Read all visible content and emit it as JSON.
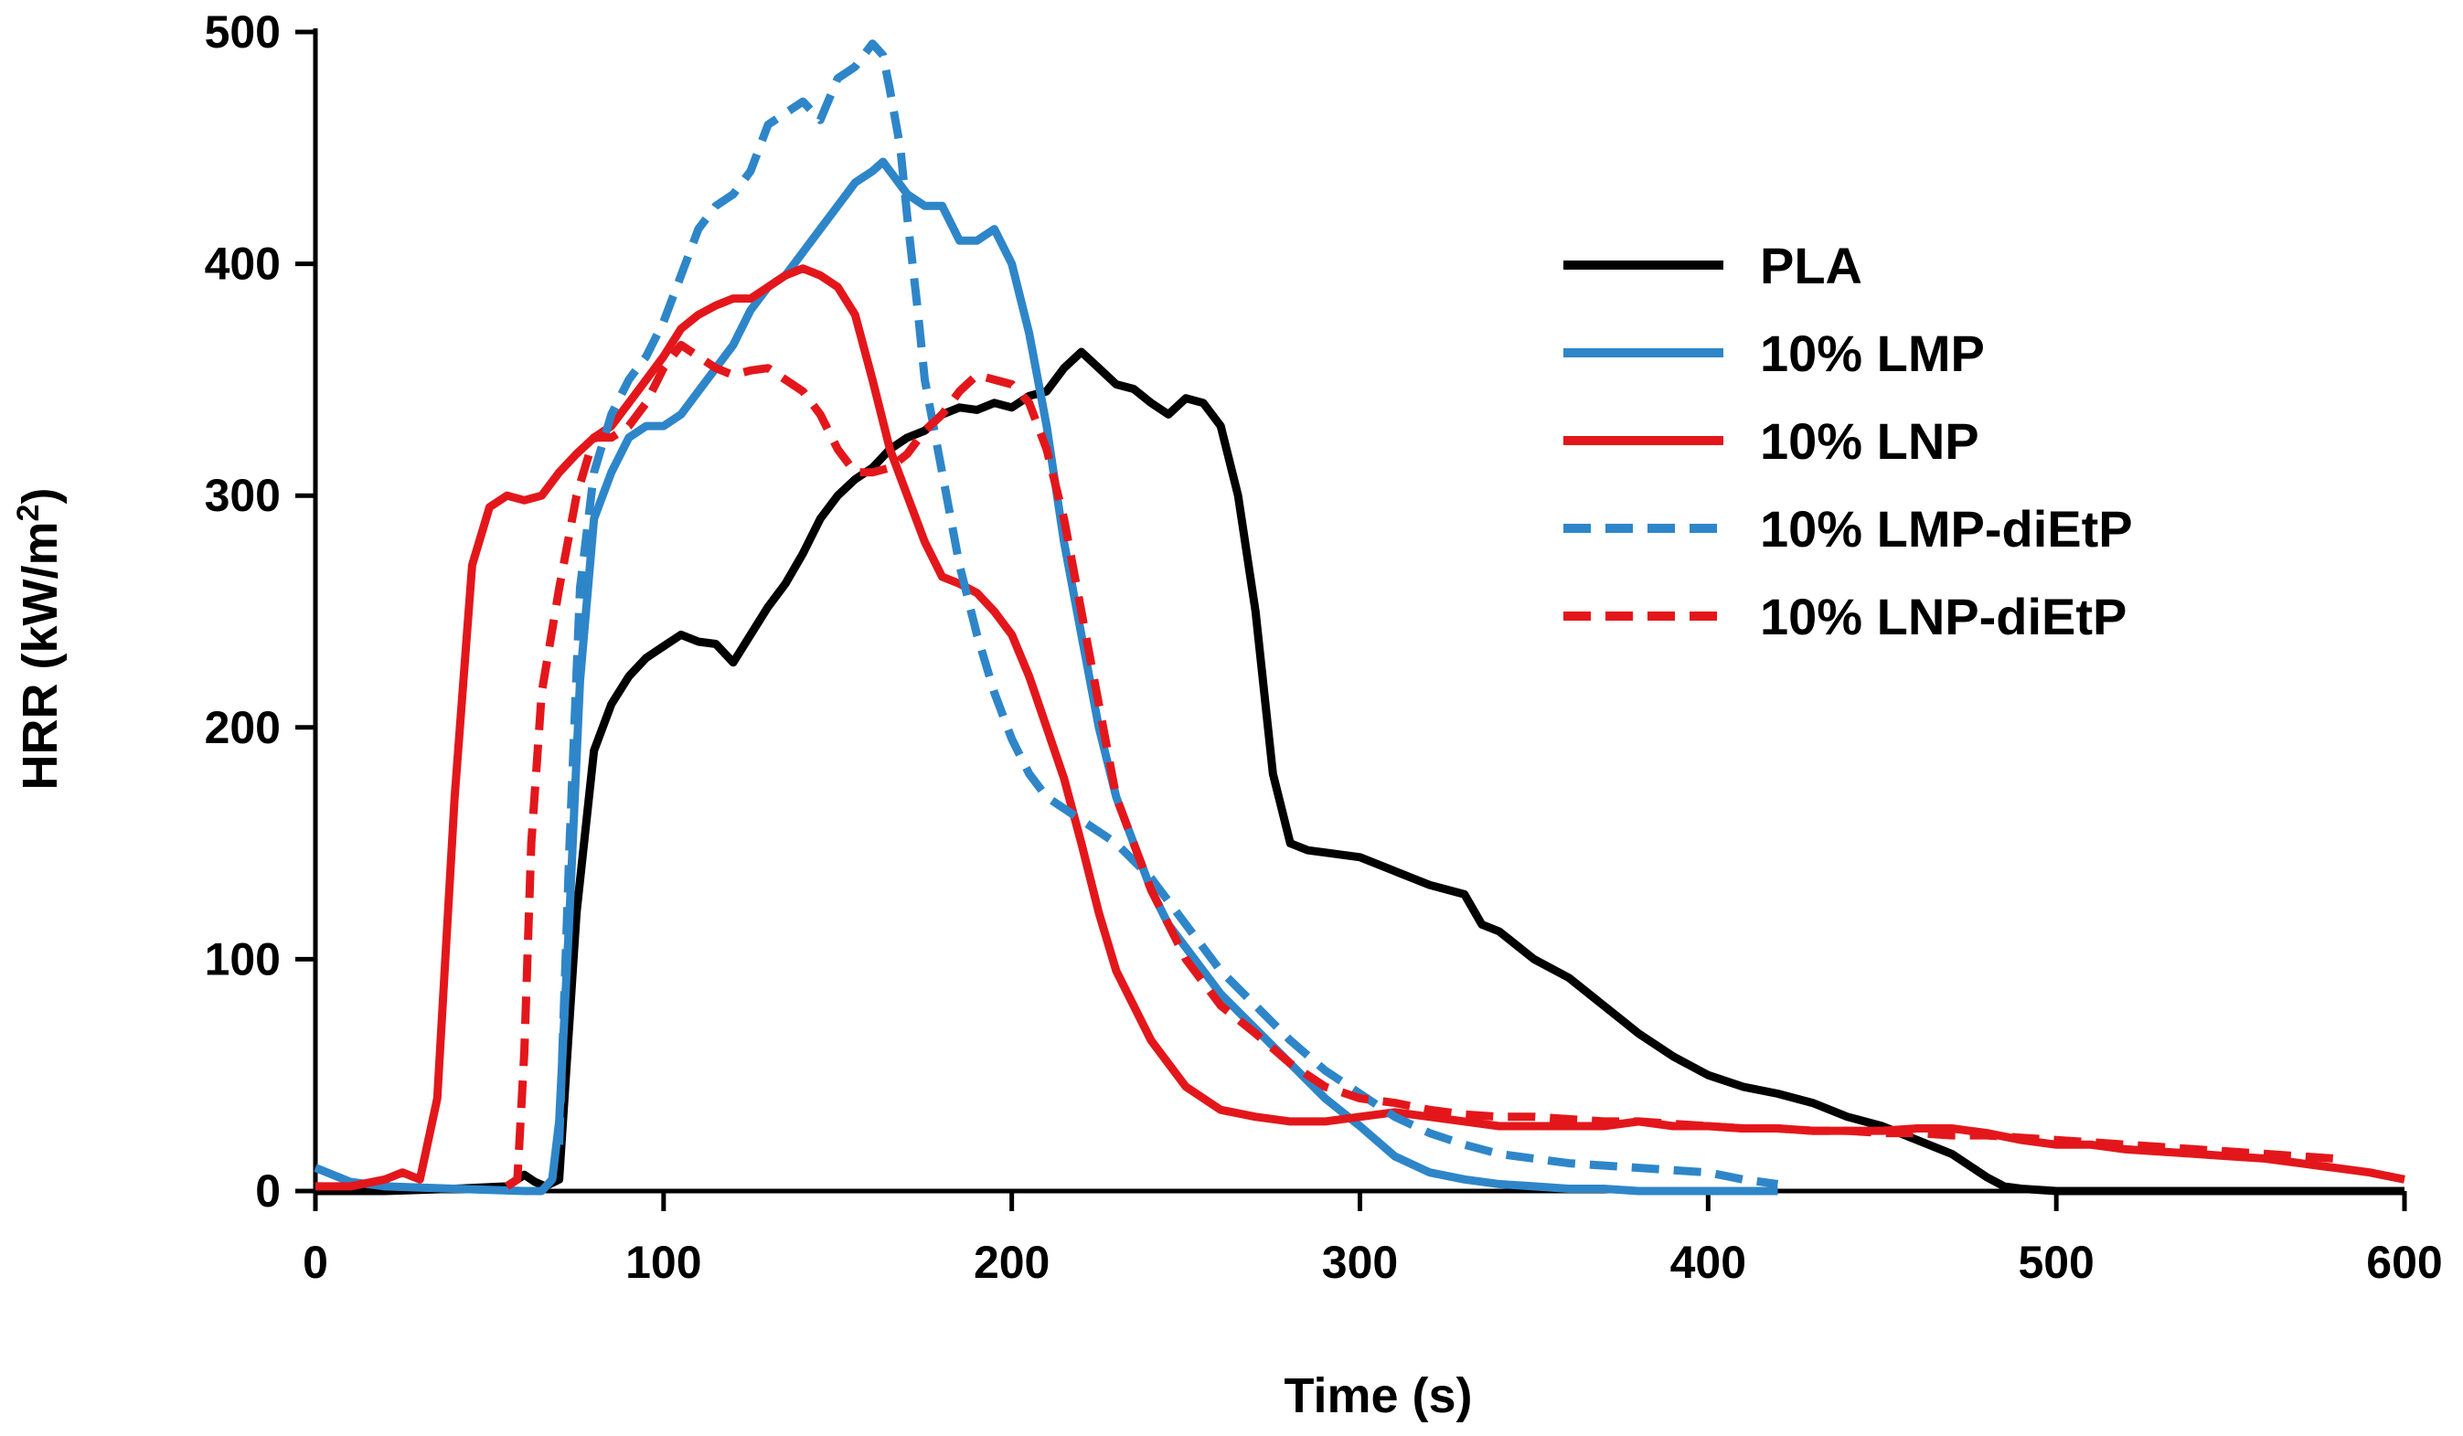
{
  "chart_data": {
    "type": "line",
    "title": "",
    "xlabel": "Time (s)",
    "ylabel": "HRR (kW/m²)",
    "ylabel_parts": {
      "main": "HRR (kW/m",
      "superscript": "2",
      "close": ")"
    },
    "xlim": [
      0,
      600
    ],
    "ylim": [
      0,
      500
    ],
    "xticks": [
      0,
      100,
      200,
      300,
      400,
      500,
      600
    ],
    "yticks": [
      0,
      100,
      200,
      300,
      400,
      500
    ],
    "grid": false,
    "legend_position": "top-right",
    "series": [
      {
        "name": "PLA",
        "color": "#000000",
        "dashed": false,
        "x": [
          0,
          20,
          40,
          55,
          60,
          63,
          66,
          70,
          75,
          80,
          85,
          90,
          95,
          100,
          105,
          110,
          115,
          120,
          125,
          130,
          135,
          140,
          145,
          150,
          155,
          160,
          165,
          170,
          175,
          180,
          185,
          190,
          195,
          200,
          205,
          210,
          215,
          220,
          225,
          230,
          235,
          240,
          245,
          250,
          255,
          260,
          265,
          270,
          275,
          280,
          285,
          290,
          300,
          310,
          320,
          330,
          335,
          340,
          350,
          360,
          370,
          380,
          390,
          400,
          410,
          420,
          430,
          440,
          450,
          460,
          470,
          480,
          485,
          490,
          500,
          510,
          520,
          540,
          560,
          580,
          600
        ],
        "values": [
          0,
          0,
          1,
          2,
          7,
          4,
          2,
          5,
          120,
          190,
          210,
          222,
          230,
          235,
          240,
          237,
          236,
          228,
          240,
          252,
          262,
          275,
          290,
          300,
          307,
          312,
          320,
          325,
          328,
          335,
          338,
          337,
          340,
          338,
          343,
          345,
          355,
          362,
          355,
          348,
          346,
          340,
          335,
          342,
          340,
          330,
          300,
          250,
          180,
          150,
          147,
          146,
          144,
          138,
          132,
          128,
          115,
          112,
          100,
          92,
          80,
          68,
          58,
          50,
          45,
          42,
          38,
          32,
          28,
          22,
          16,
          6,
          2,
          1,
          0,
          0,
          0,
          0,
          0,
          0,
          0
        ]
      },
      {
        "name": "10% LMP",
        "color": "#2e86c9",
        "dashed": false,
        "x": [
          0,
          10,
          20,
          40,
          60,
          65,
          68,
          70,
          73,
          76,
          80,
          85,
          90,
          95,
          100,
          105,
          110,
          115,
          120,
          125,
          130,
          135,
          140,
          145,
          150,
          155,
          160,
          163,
          165,
          170,
          175,
          180,
          185,
          190,
          195,
          200,
          205,
          210,
          215,
          220,
          225,
          230,
          235,
          240,
          245,
          250,
          260,
          270,
          280,
          290,
          300,
          310,
          320,
          330,
          340,
          350,
          360,
          370,
          380,
          390,
          400,
          410,
          420
        ],
        "values": [
          10,
          4,
          2,
          1,
          0,
          0,
          5,
          30,
          120,
          220,
          290,
          310,
          325,
          330,
          330,
          335,
          345,
          355,
          365,
          380,
          390,
          395,
          405,
          415,
          425,
          435,
          440,
          444,
          440,
          430,
          425,
          425,
          410,
          410,
          415,
          400,
          370,
          330,
          280,
          240,
          200,
          170,
          150,
          130,
          115,
          105,
          85,
          70,
          55,
          40,
          28,
          15,
          8,
          5,
          3,
          2,
          1,
          1,
          0,
          0,
          0,
          0,
          0
        ]
      },
      {
        "name": "10% LNP",
        "color": "#e3171b",
        "dashed": false,
        "x": [
          0,
          10,
          20,
          25,
          30,
          35,
          40,
          45,
          50,
          55,
          60,
          65,
          70,
          75,
          80,
          85,
          90,
          95,
          100,
          105,
          110,
          115,
          120,
          125,
          130,
          135,
          140,
          145,
          150,
          155,
          160,
          165,
          170,
          175,
          180,
          185,
          190,
          195,
          200,
          205,
          210,
          215,
          220,
          225,
          230,
          240,
          250,
          260,
          270,
          280,
          290,
          300,
          310,
          320,
          330,
          340,
          350,
          360,
          370,
          380,
          390,
          400,
          410,
          420,
          430,
          440,
          450,
          460,
          470,
          480,
          490,
          500,
          510,
          520,
          530,
          540,
          550,
          560,
          570,
          580,
          590,
          600
        ],
        "values": [
          2,
          2,
          5,
          8,
          5,
          40,
          170,
          270,
          295,
          300,
          298,
          300,
          310,
          318,
          325,
          330,
          340,
          350,
          360,
          372,
          378,
          382,
          385,
          385,
          390,
          395,
          398,
          395,
          390,
          378,
          350,
          320,
          300,
          280,
          265,
          262,
          258,
          250,
          240,
          222,
          200,
          178,
          150,
          120,
          95,
          65,
          45,
          35,
          32,
          30,
          30,
          32,
          34,
          32,
          30,
          28,
          28,
          28,
          28,
          30,
          28,
          28,
          27,
          27,
          26,
          26,
          26,
          27,
          27,
          25,
          22,
          20,
          20,
          18,
          17,
          16,
          15,
          14,
          12,
          10,
          8,
          5
        ]
      },
      {
        "name": "10% LMP-diEtP",
        "color": "#2e86c9",
        "dashed": true,
        "x": [
          70,
          73,
          76,
          80,
          85,
          90,
          95,
          100,
          105,
          110,
          115,
          120,
          125,
          130,
          135,
          140,
          145,
          150,
          155,
          160,
          163,
          165,
          168,
          170,
          173,
          175,
          180,
          185,
          190,
          195,
          200,
          205,
          210,
          220,
          230,
          240,
          250,
          260,
          270,
          280,
          290,
          300,
          310,
          320,
          330,
          340,
          350,
          360,
          370,
          380,
          390,
          400,
          410,
          420
        ],
        "values": [
          20,
          150,
          260,
          310,
          335,
          350,
          360,
          375,
          395,
          415,
          425,
          430,
          440,
          460,
          465,
          470,
          462,
          480,
          485,
          495,
          490,
          475,
          450,
          420,
          380,
          350,
          310,
          270,
          240,
          215,
          195,
          180,
          170,
          160,
          150,
          135,
          115,
          95,
          80,
          65,
          52,
          42,
          32,
          25,
          20,
          16,
          14,
          12,
          11,
          10,
          9,
          8,
          5,
          3
        ]
      },
      {
        "name": "10% LNP-diEtP",
        "color": "#e3171b",
        "dashed": true,
        "x": [
          55,
          58,
          60,
          62,
          65,
          70,
          75,
          80,
          85,
          90,
          95,
          100,
          105,
          110,
          115,
          120,
          125,
          130,
          135,
          140,
          145,
          150,
          155,
          160,
          165,
          170,
          175,
          180,
          185,
          190,
          195,
          200,
          205,
          210,
          215,
          220,
          225,
          230,
          240,
          250,
          260,
          270,
          280,
          290,
          300,
          310,
          320,
          330,
          340,
          350,
          360,
          370,
          380,
          390,
          400,
          410,
          420,
          430,
          440,
          450,
          460,
          470,
          480,
          490,
          500,
          510,
          520,
          530,
          540,
          550,
          560,
          570,
          580
        ],
        "values": [
          2,
          5,
          60,
          150,
          215,
          260,
          300,
          325,
          325,
          330,
          340,
          355,
          365,
          360,
          355,
          352,
          354,
          355,
          350,
          345,
          335,
          320,
          310,
          310,
          312,
          318,
          328,
          335,
          345,
          352,
          350,
          348,
          340,
          320,
          290,
          250,
          210,
          170,
          130,
          100,
          80,
          68,
          55,
          45,
          40,
          38,
          35,
          33,
          32,
          32,
          31,
          30,
          30,
          29,
          28,
          27,
          27,
          26,
          26,
          25,
          25,
          24,
          24,
          23,
          22,
          21,
          20,
          19,
          18,
          17,
          16,
          15,
          14
        ]
      }
    ]
  }
}
